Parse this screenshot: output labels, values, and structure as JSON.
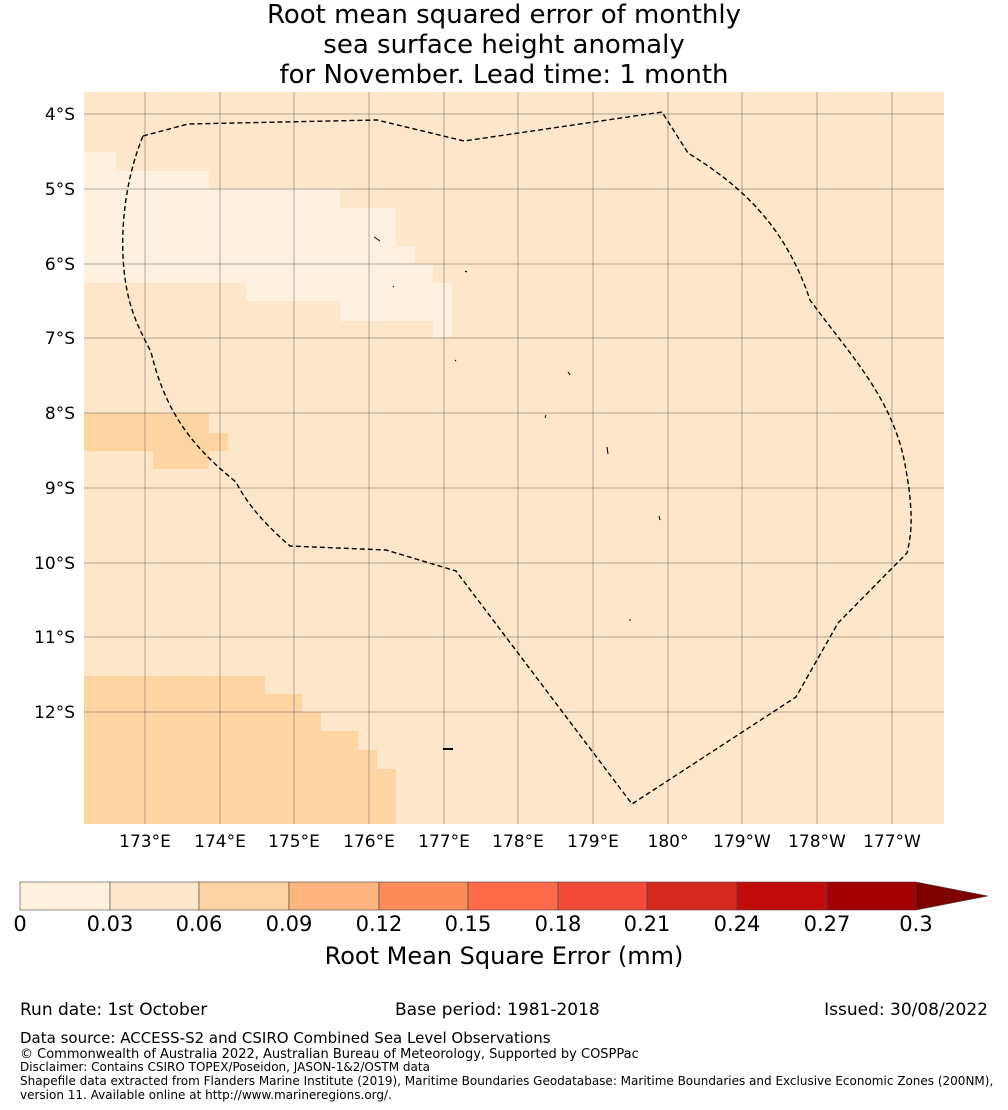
{
  "title": {
    "line1": "Root mean squared error of monthly",
    "line2": "sea surface height anomaly",
    "line3": "for November. Lead time: 1 month"
  },
  "map": {
    "lat_labels": [
      "4°S",
      "5°S",
      "6°S",
      "7°S",
      "8°S",
      "9°S",
      "10°S",
      "11°S",
      "12°S"
    ],
    "lon_labels": [
      "173°E",
      "174°E",
      "175°E",
      "176°E",
      "177°E",
      "178°E",
      "179°E",
      "180°",
      "179°W",
      "178°W",
      "177°W"
    ],
    "background_color": "#fde6c9",
    "zones": [
      {
        "name": "light-band",
        "color": "#fef1e0",
        "range": "0-0.03"
      },
      {
        "name": "orange-patch-west",
        "color": "#fcd5a3",
        "range": "0.06-0.09"
      },
      {
        "name": "orange-patch-southwest",
        "color": "#fcd5a3",
        "range": "0.06-0.09"
      }
    ],
    "boundary_style": "dashed"
  },
  "colorbar": {
    "tick_labels": [
      "0",
      "0.03",
      "0.06",
      "0.09",
      "0.12",
      "0.15",
      "0.18",
      "0.21",
      "0.24",
      "0.27",
      "0.3"
    ],
    "colors": [
      "#fef1e0",
      "#fde6c9",
      "#fcd5a3",
      "#fdb47f",
      "#fc8d59",
      "#fc6a4a",
      "#f34b39",
      "#d6281e",
      "#c20b0b",
      "#a50006"
    ],
    "extend_color": "#800000",
    "label": "Root Mean Square Error (mm)"
  },
  "footer": {
    "run_date": "Run date: 1st October",
    "base_period": "Base period: 1981-2018",
    "issued": "Issued: 30/08/2022",
    "data_source": "Data source: ACCESS-S2 and CSIRO Combined Sea Level Observations",
    "copyright": "© Commonwealth of Australia 2022, Australian Bureau of Meteorology, Supported by COSPPac",
    "disclaimer": "Disclaimer: Contains CSIRO TOPEX/Poseidon, JASON-1&2/OSTM data",
    "shapefile_1": "Shapefile data extracted from Flanders Marine Institute (2019), Maritime Boundaries Geodatabase: Maritime Boundaries and Exclusive Economic Zones (200NM),",
    "shapefile_2": "version 11. Available online at http://www.marineregions.org/."
  }
}
